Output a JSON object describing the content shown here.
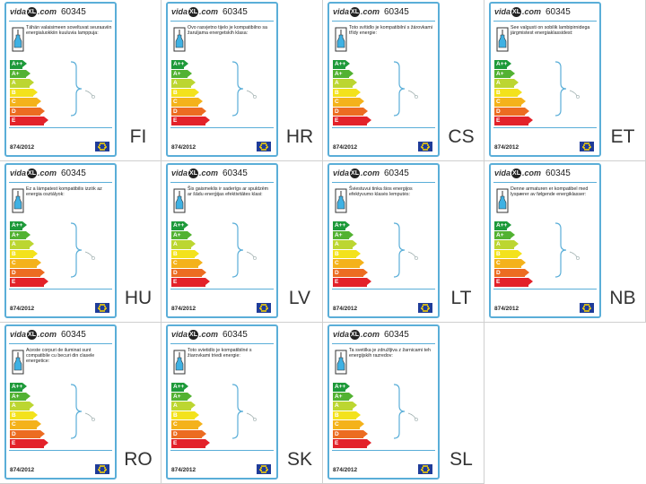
{
  "brand": "vidaXL.com",
  "brand_left": "vida",
  "brand_mark": "XL",
  "brand_right": ".com",
  "product_code": "60345",
  "regulation": "874/2012",
  "energy_classes": [
    {
      "label": "A++",
      "color": "#1e9a3a"
    },
    {
      "label": "A+",
      "color": "#52b232"
    },
    {
      "label": "A",
      "color": "#bcd631"
    },
    {
      "label": "B",
      "color": "#f3e21c"
    },
    {
      "label": "C",
      "color": "#f4b21b"
    },
    {
      "label": "D",
      "color": "#ec6c21"
    },
    {
      "label": "E",
      "color": "#e3222a"
    }
  ],
  "labels": [
    {
      "lang": "FI",
      "text": "Tähän valaisimeen soveltuvat seuraaviin energialuokkiin kuuluvia lamppuja:"
    },
    {
      "lang": "HR",
      "text": "Ovo rasvjetno tijelo je kompatibilno sa žaruljama energetskih klasa:"
    },
    {
      "lang": "CS",
      "text": "Toto svítidlo je kompatibilní s žárovkami třídy energie:"
    },
    {
      "lang": "ET",
      "text": "See valgusti on sobilik lambipirnidega järgmistest energiaklassidest:"
    },
    {
      "lang": "HU",
      "text": "Ez a lámpatest kompatibilis izzók az energia osztályok:"
    },
    {
      "lang": "LV",
      "text": "Šis gaismeklis ir saderīgs ar spuldzēm ar šādu enerģijas efektivitātes klasi:"
    },
    {
      "lang": "LT",
      "text": "Šviestuvui tinka šios energijos efektyvumo klasės lemputės:"
    },
    {
      "lang": "NB",
      "text": "Denne armaturen er kompatibel med lyspærer av følgende energiklasser:"
    },
    {
      "lang": "RO",
      "text": "Aceste corpuri de iluminat sunt compatibile cu becuri din clasele energetice:"
    },
    {
      "lang": "SK",
      "text": "Toto svietidlo je kompatibilné s žiarovkami triedi energie:"
    },
    {
      "lang": "SL",
      "text": "Ta svetilka je združljiva z žarnicami teh energijskih razredov:"
    }
  ],
  "colors": {
    "border": "#5aaed8",
    "eu_flag": "#1f3c99",
    "eu_stars": "#ffd700"
  }
}
